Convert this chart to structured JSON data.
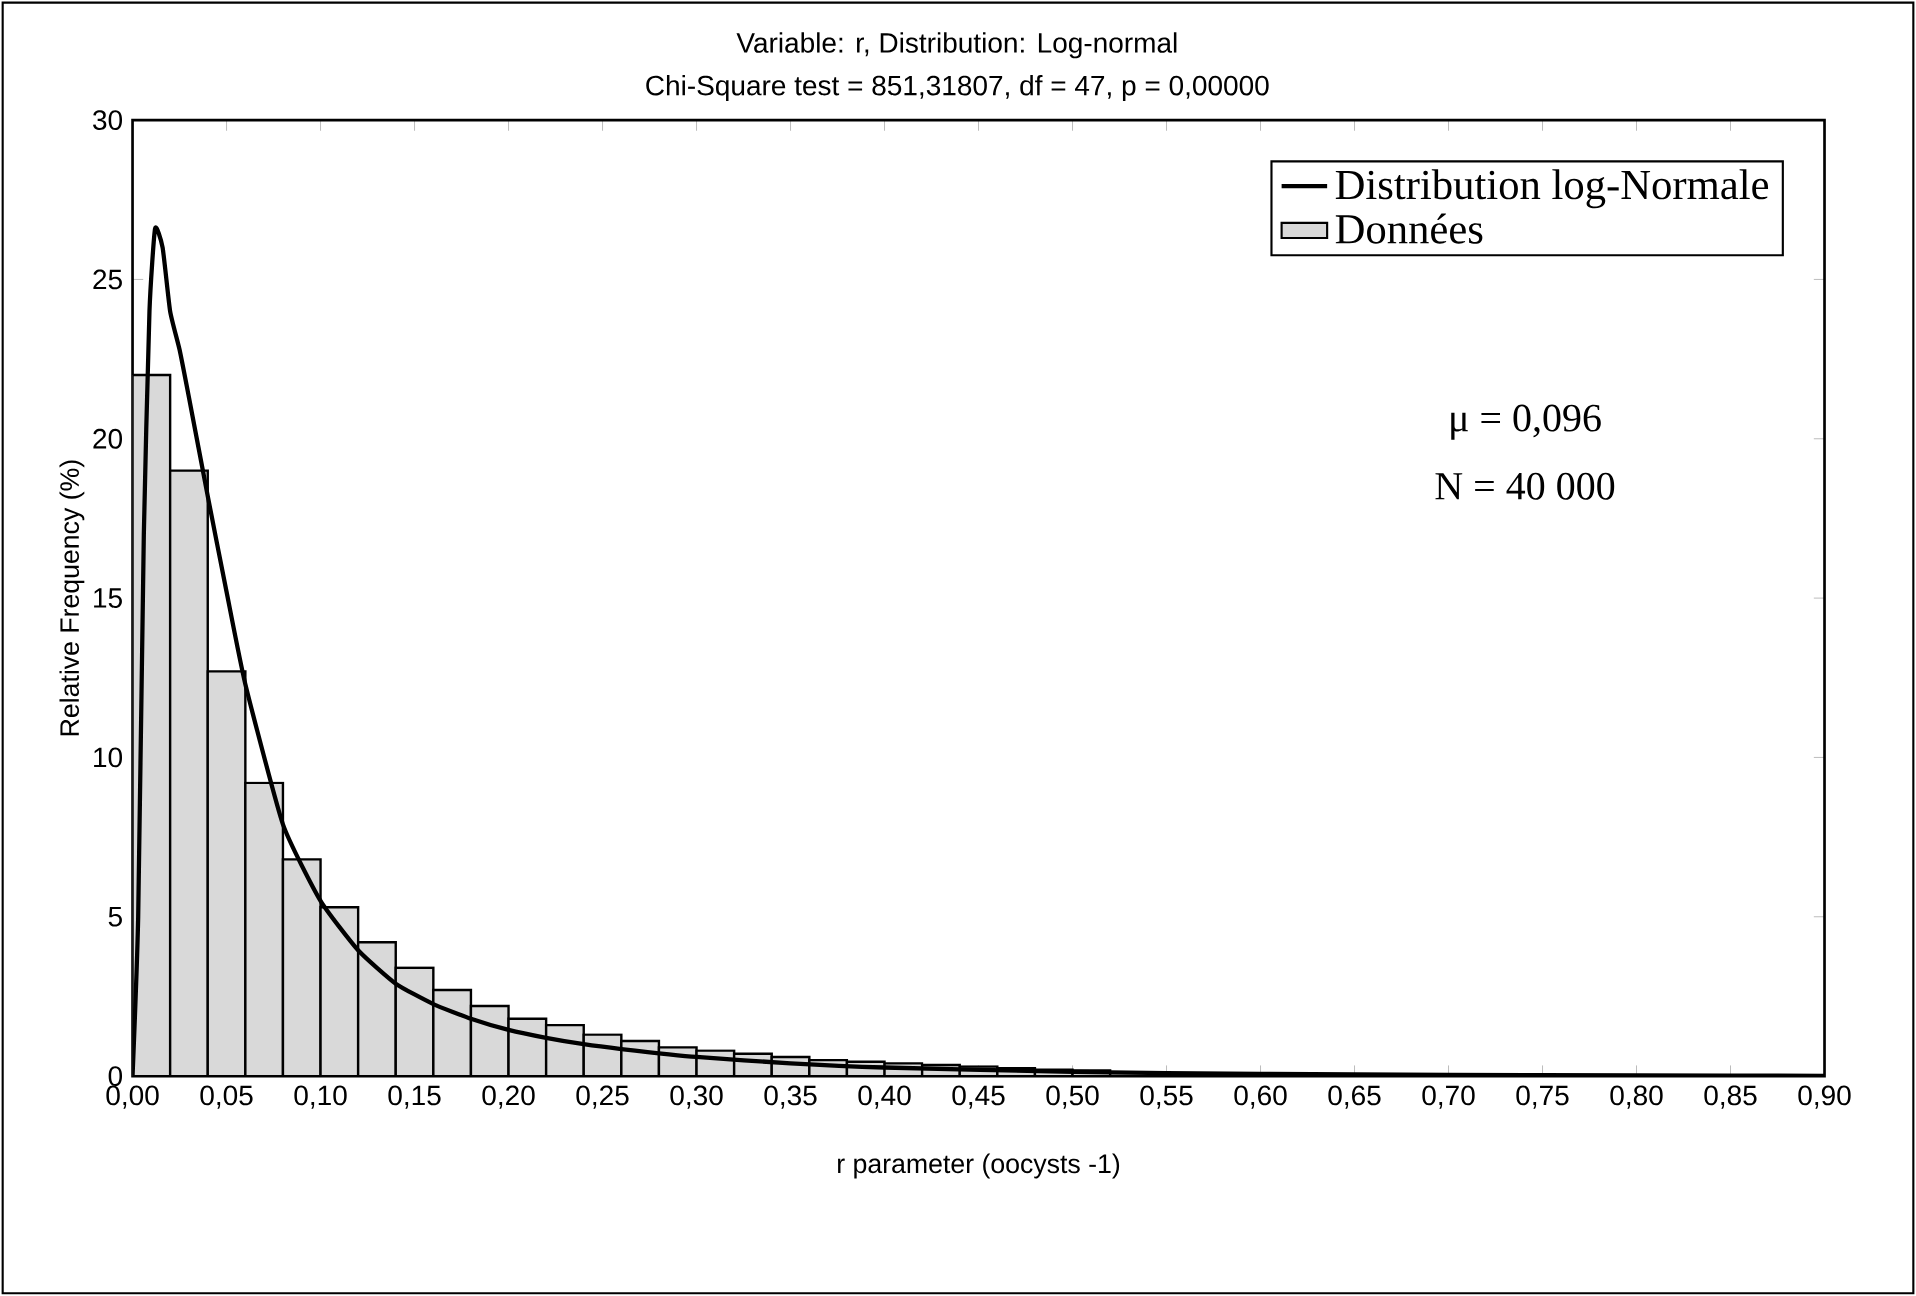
{
  "chart_data": {
    "type": "histogram",
    "title": "Variable: r, Distribution: Log-normal",
    "subtitle": "Chi-Square test = 851,31807, df = 47, p = 0,00000",
    "xlabel": "r parameter (oocysts -1)",
    "ylabel": "Relative Frequency (%)",
    "bins": [
      0,
      0.02,
      0.04,
      0.06,
      0.08,
      0.1,
      0.12,
      0.14,
      0.16,
      0.18,
      0.2,
      0.22,
      0.24,
      0.26,
      0.28,
      0.3,
      0.32,
      0.34,
      0.36,
      0.38,
      0.4,
      0.42,
      0.44,
      0.46,
      0.48,
      0.5,
      0.52,
      0.54,
      0.56,
      0.58,
      0.6,
      0.62,
      0.64,
      0.66,
      0.68,
      0.7,
      0.72,
      0.74,
      0.76,
      0.78,
      0.8,
      0.82,
      0.84,
      0.86,
      0.88,
      0.9
    ],
    "series": [
      {
        "name": "Distribution log-Normale",
        "type": "line",
        "color": "#000000",
        "x": [
          0,
          0.003,
          0.006,
          0.009,
          0.012,
          0.016,
          0.02,
          0.025,
          0.03,
          0.04,
          0.05,
          0.06,
          0.08,
          0.1,
          0.12,
          0.14,
          0.16,
          0.18,
          0.2,
          0.22,
          0.24,
          0.26,
          0.3,
          0.35,
          0.4,
          0.5,
          0.6,
          0.7,
          0.8,
          0.9
        ],
        "values": [
          0,
          5,
          17,
          24,
          26.6,
          26,
          24,
          22.8,
          21.3,
          18.2,
          15.2,
          12.3,
          7.9,
          5.5,
          3.95,
          2.9,
          2.26,
          1.8,
          1.45,
          1.2,
          1.0,
          0.85,
          0.6,
          0.4,
          0.27,
          0.13,
          0.07,
          0.04,
          0.02,
          0.01
        ]
      },
      {
        "name": "Données",
        "color": "#d9d9d9",
        "values": [
          22.0,
          19.0,
          12.7,
          9.2,
          6.8,
          5.3,
          4.2,
          3.4,
          2.7,
          2.2,
          1.8,
          1.6,
          1.3,
          1.1,
          0.9,
          0.8,
          0.7,
          0.6,
          0.5,
          0.45,
          0.4,
          0.35,
          0.3,
          0.25,
          0.2,
          0.18,
          null,
          null,
          null,
          0.08,
          0.07,
          0.06,
          0.05,
          0.04,
          0.04,
          0.03,
          0.03,
          0.02,
          0.02,
          0.02,
          0.01,
          0.01,
          0.01,
          0.01,
          0.01
        ]
      }
    ],
    "annotations": [
      "μ = 0,096",
      "N = 40 000"
    ],
    "xlim": [
      0,
      0.9
    ],
    "xticks": [
      {
        "value": 0,
        "label": "0,00"
      },
      {
        "value": 0.05,
        "label": "0,05"
      },
      {
        "value": 0.1,
        "label": "0,10"
      },
      {
        "value": 0.15,
        "label": "0,15"
      },
      {
        "value": 0.2,
        "label": "0,20"
      },
      {
        "value": 0.25,
        "label": "0,25"
      },
      {
        "value": 0.3,
        "label": "0,30"
      },
      {
        "value": 0.35,
        "label": "0,35"
      },
      {
        "value": 0.4,
        "label": "0,40"
      },
      {
        "value": 0.45,
        "label": "0,45"
      },
      {
        "value": 0.5,
        "label": "0,50"
      },
      {
        "value": 0.55,
        "label": "0,55"
      },
      {
        "value": 0.6,
        "label": "0,60"
      },
      {
        "value": 0.65,
        "label": "0,65"
      },
      {
        "value": 0.7,
        "label": "0,70"
      },
      {
        "value": 0.75,
        "label": "0,75"
      },
      {
        "value": 0.8,
        "label": "0,80"
      },
      {
        "value": 0.85,
        "label": "0,85"
      },
      {
        "value": 0.9,
        "label": "0,90"
      }
    ],
    "ylim": [
      0,
      30
    ],
    "yticks": [
      0,
      5,
      10,
      15,
      20,
      25,
      30
    ],
    "grid": false,
    "legend": "top right",
    "marker": "none",
    "line_style": "solid"
  }
}
